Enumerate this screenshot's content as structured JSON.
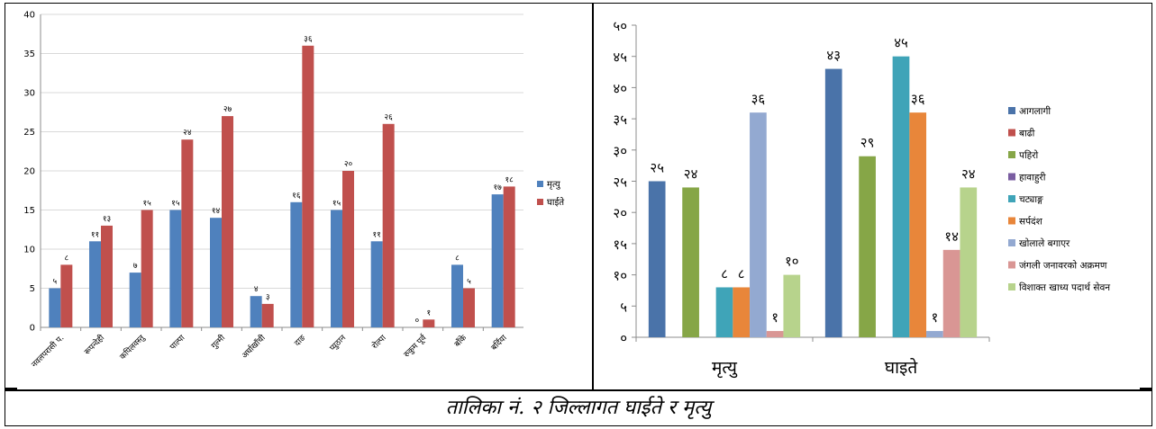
{
  "caption": "तालिका नं. २ जिल्लागत घाईते र मृत्यु",
  "chart_data": [
    {
      "type": "bar",
      "categories": [
        "नवलपरासी प.",
        "रूपन्देही",
        "कपिलवस्तु",
        "पाल्पा",
        "गुल्मी",
        "अर्घाखाँची",
        "दाङ",
        "प्युठान",
        "रोल्पा",
        "रुकुम पूर्व",
        "बाँके",
        "बर्दिया"
      ],
      "series": [
        {
          "name": "मृत्यु",
          "color": "#4F81BD",
          "values": [
            5,
            11,
            7,
            15,
            14,
            4,
            16,
            15,
            11,
            0,
            8,
            17
          ],
          "labels": [
            "५",
            "११",
            "७",
            "१५",
            "१४",
            "४",
            "१६",
            "१५",
            "११",
            "०",
            "८",
            "१७"
          ]
        },
        {
          "name": "घाईते",
          "color": "#C0504D",
          "values": [
            8,
            13,
            15,
            24,
            27,
            3,
            36,
            20,
            26,
            1,
            5,
            18
          ],
          "labels": [
            "८",
            "१३",
            "१५",
            "२४",
            "२७",
            "३",
            "३६",
            "२०",
            "२६",
            "१",
            "५",
            "१८"
          ]
        }
      ],
      "ylim": [
        0,
        40
      ],
      "yticks": [
        "0",
        "5",
        "10",
        "15",
        "20",
        "25",
        "30",
        "35",
        "40"
      ],
      "grid": true,
      "legend": "right"
    },
    {
      "type": "bar",
      "categories": [
        "मृत्यु",
        "घाइते"
      ],
      "series": [
        {
          "name": "आगलागी",
          "color": "#4A73A9",
          "values": [
            25,
            43
          ],
          "labels": [
            "२५",
            "४३"
          ]
        },
        {
          "name": "बाढी",
          "color": "#C0504D",
          "values": [
            null,
            null
          ],
          "labels": [
            null,
            null
          ]
        },
        {
          "name": "पहिरो",
          "color": "#86A647",
          "values": [
            24,
            29
          ],
          "labels": [
            "२४",
            "२९"
          ]
        },
        {
          "name": "हावाहुरी",
          "color": "#7A5DA1",
          "values": [
            null,
            null
          ],
          "labels": [
            null,
            null
          ]
        },
        {
          "name": "चट्याङ्ग",
          "color": "#3FA4B8",
          "values": [
            8,
            45
          ],
          "labels": [
            "८",
            "४५"
          ]
        },
        {
          "name": "सर्पदंश",
          "color": "#E8863A",
          "values": [
            8,
            36
          ],
          "labels": [
            "८",
            "३६"
          ]
        },
        {
          "name": "खोलाले बगाएर",
          "color": "#93A9D1",
          "values": [
            36,
            1
          ],
          "labels": [
            "३६",
            "१"
          ]
        },
        {
          "name": "जंगली जनावरको अक्रमण",
          "color": "#D99694",
          "values": [
            1,
            14
          ],
          "labels": [
            "१",
            "१४"
          ]
        },
        {
          "name": "विशाक्त खाध्य पदार्थ सेवन",
          "color": "#B7D38C",
          "values": [
            10,
            24
          ],
          "labels": [
            "१०",
            "२४"
          ]
        }
      ],
      "ylim": [
        0,
        50
      ],
      "yticks": [
        "०",
        "५",
        "१०",
        "१५",
        "२०",
        "२५",
        "३०",
        "३५",
        "४०",
        "४५",
        "५०"
      ],
      "grid": false,
      "legend": "right"
    }
  ]
}
